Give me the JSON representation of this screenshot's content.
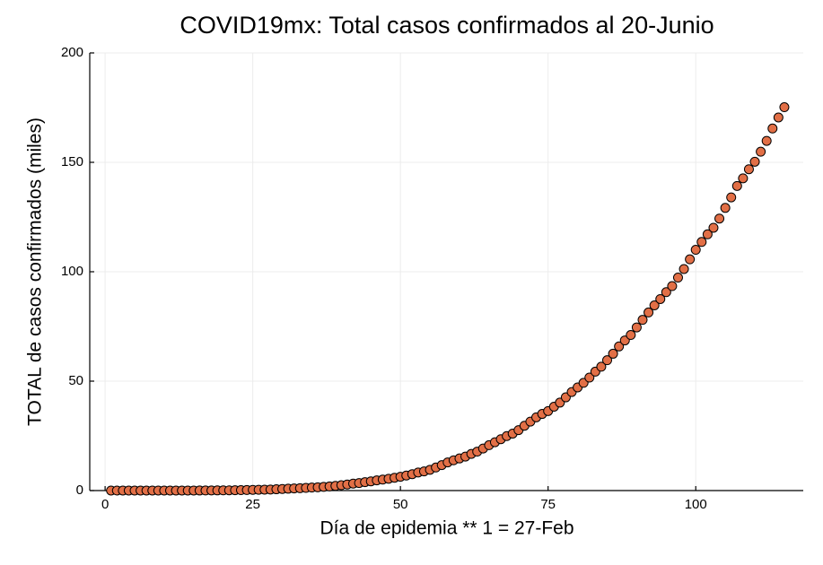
{
  "chart_data": {
    "type": "scatter",
    "title": "COVID19mx: Total casos confirmados al 20-Junio",
    "xlabel": "Día de epidemia ** 1 = 27-Feb",
    "ylabel": "TOTAL de casos confirmados (miles)",
    "color": "#e26f46",
    "grid": true,
    "xlim": [
      -2.6,
      118.2
    ],
    "ylim": [
      0,
      200
    ],
    "xticks": [
      0,
      25,
      50,
      75,
      100
    ],
    "yticks": [
      0,
      50,
      100,
      150,
      200
    ],
    "x": [
      1,
      2,
      3,
      4,
      5,
      6,
      7,
      8,
      9,
      10,
      11,
      12,
      13,
      14,
      15,
      16,
      17,
      18,
      19,
      20,
      21,
      22,
      23,
      24,
      25,
      26,
      27,
      28,
      29,
      30,
      31,
      32,
      33,
      34,
      35,
      36,
      37,
      38,
      39,
      40,
      41,
      42,
      43,
      44,
      45,
      46,
      47,
      48,
      49,
      50,
      51,
      52,
      53,
      54,
      55,
      56,
      57,
      58,
      59,
      60,
      61,
      62,
      63,
      64,
      65,
      66,
      67,
      68,
      69,
      70,
      71,
      72,
      73,
      74,
      75,
      76,
      77,
      78,
      79,
      80,
      81,
      82,
      83,
      84,
      85,
      86,
      87,
      88,
      89,
      90,
      91,
      92,
      93,
      94,
      95,
      96,
      97,
      98,
      99,
      100,
      101,
      102,
      103,
      104,
      105,
      106,
      107,
      108,
      109,
      110,
      111,
      112,
      113,
      114,
      115
    ],
    "values": [
      0,
      0,
      0,
      0,
      0,
      0,
      0,
      0.01,
      0.01,
      0.01,
      0.01,
      0.01,
      0.01,
      0.02,
      0.02,
      0.03,
      0.04,
      0.05,
      0.08,
      0.09,
      0.12,
      0.16,
      0.2,
      0.25,
      0.32,
      0.37,
      0.41,
      0.48,
      0.59,
      0.72,
      0.85,
      0.99,
      1.09,
      1.22,
      1.38,
      1.51,
      1.69,
      1.89,
      2.14,
      2.44,
      2.79,
      3.18,
      3.44,
      3.84,
      4.22,
      4.66,
      5.01,
      5.4,
      5.85,
      6.3,
      6.88,
      7.5,
      8.26,
      8.77,
      9.5,
      10.54,
      11.63,
      12.87,
      13.84,
      14.68,
      15.53,
      16.75,
      17.8,
      19.22,
      20.74,
      22.09,
      23.47,
      24.91,
      26.03,
      27.63,
      29.62,
      31.52,
      33.46,
      35.02,
      36.33,
      38.32,
      40.19,
      42.6,
      45.03,
      47.14,
      49.22,
      51.63,
      54.35,
      56.59,
      59.57,
      62.53,
      65.86,
      68.62,
      71.1,
      74.56,
      78.02,
      81.4,
      84.63,
      87.51,
      90.66,
      93.43,
      97.33,
      101.24,
      105.68,
      110.03,
      113.62,
      117.1,
      120.1,
      124.3,
      129.18,
      133.97,
      139.2,
      142.69,
      146.84,
      150.26,
      154.86,
      159.79,
      165.46,
      170.49,
      175.2
    ]
  }
}
